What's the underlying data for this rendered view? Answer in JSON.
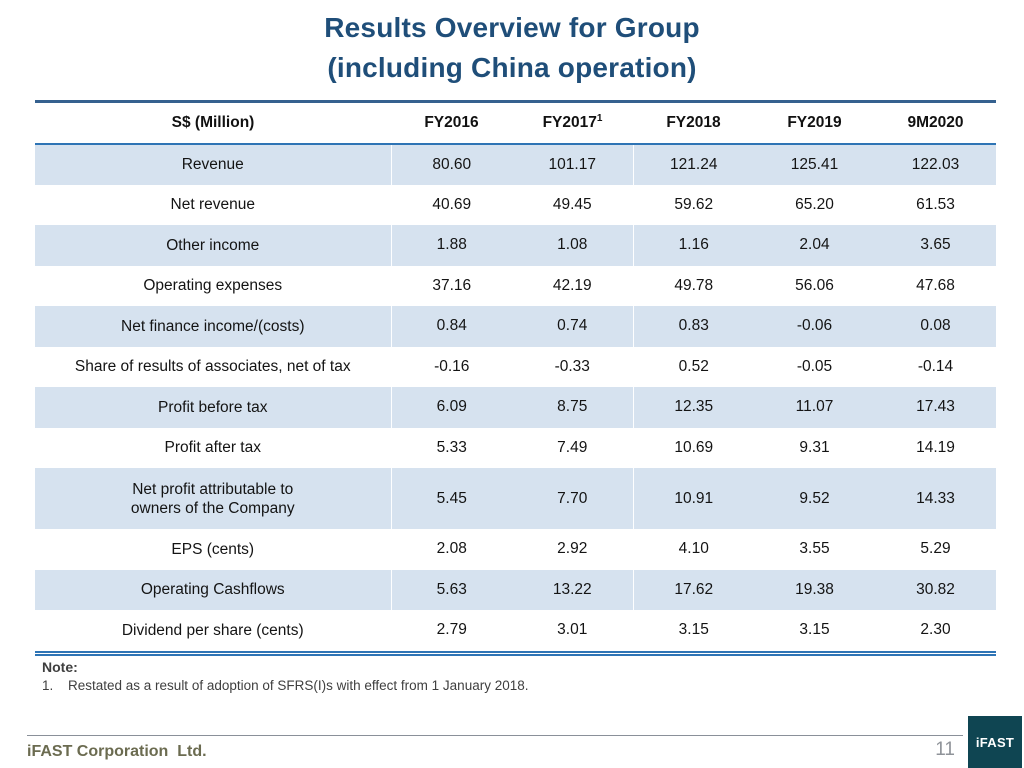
{
  "colors": {
    "title_blue": "#1F4E79",
    "table_top_border": "#35618F",
    "table_border_blue": "#2E74B5",
    "row_shading": "#D6E2EF",
    "footer_text_olive": "#6B6B50",
    "footer_line_gray": "#8A9099",
    "page_number_gray": "#8F9399",
    "logo_teal": "#0F4552"
  },
  "title": {
    "line1": "Results Overview for Group",
    "line2": "(including China operation)"
  },
  "table": {
    "columns": [
      {
        "label": "S$ (Million)"
      },
      {
        "label": "FY2016"
      },
      {
        "label": "FY2017",
        "sup": "1"
      },
      {
        "label": "FY2018"
      },
      {
        "label": "FY2019"
      },
      {
        "label": "9M2020"
      }
    ],
    "rows": [
      {
        "label": "Revenue",
        "values": [
          "80.60",
          "101.17",
          "121.24",
          "125.41",
          "122.03"
        ]
      },
      {
        "label": "Net revenue",
        "values": [
          "40.69",
          "49.45",
          "59.62",
          "65.20",
          "61.53"
        ]
      },
      {
        "label": "Other income",
        "values": [
          "1.88",
          "1.08",
          "1.16",
          "2.04",
          "3.65"
        ]
      },
      {
        "label": "Operating expenses",
        "values": [
          "37.16",
          "42.19",
          "49.78",
          "56.06",
          "47.68"
        ]
      },
      {
        "label": "Net finance income/(costs)",
        "values": [
          "0.84",
          "0.74",
          "0.83",
          "-0.06",
          "0.08"
        ]
      },
      {
        "label": "Share of results of associates, net of tax",
        "values": [
          "-0.16",
          "-0.33",
          "0.52",
          "-0.05",
          "-0.14"
        ]
      },
      {
        "label": "Profit before tax",
        "values": [
          "6.09",
          "8.75",
          "12.35",
          "11.07",
          "17.43"
        ]
      },
      {
        "label": "Profit after tax",
        "values": [
          "5.33",
          "7.49",
          "10.69",
          "9.31",
          "14.19"
        ]
      },
      {
        "label": "Net profit attributable to\nowners of the Company",
        "values": [
          "5.45",
          "7.70",
          "10.91",
          "9.52",
          "14.33"
        ]
      },
      {
        "label": "EPS (cents)",
        "values": [
          "2.08",
          "2.92",
          "4.10",
          "3.55",
          "5.29"
        ]
      },
      {
        "label": "Operating Cashflows",
        "values": [
          "5.63",
          "13.22",
          "17.62",
          "19.38",
          "30.82"
        ]
      },
      {
        "label": "Dividend per share (cents)",
        "values": [
          "2.79",
          "3.01",
          "3.15",
          "3.15",
          "2.30"
        ]
      }
    ]
  },
  "note": {
    "heading": "Note:",
    "items": [
      {
        "number": "1.",
        "text": "Restated as a result of adoption of SFRS(I)s with effect from 1 January 2018."
      }
    ]
  },
  "footer": {
    "company": "iFAST Corporation  Ltd.",
    "page_number": "11",
    "logo_text": "iFAST"
  }
}
